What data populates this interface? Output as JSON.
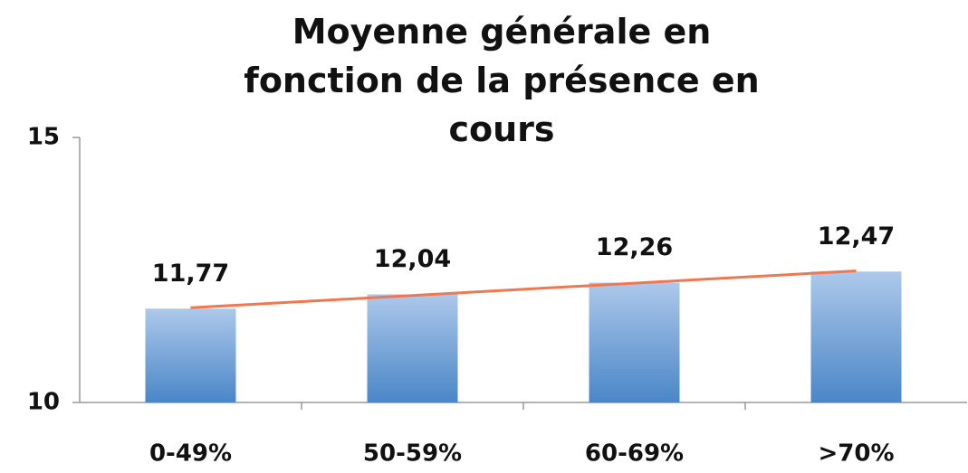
{
  "chart_data": {
    "type": "bar",
    "title": "Moyenne générale en fonction de la présence en cours",
    "categories": [
      "0-49%",
      "50-59%",
      "60-69%",
      ">70%"
    ],
    "values": [
      11.77,
      12.04,
      12.26,
      12.47
    ],
    "value_labels": [
      "11,77",
      "12,04",
      "12,26",
      "12,47"
    ],
    "color": "#4a86c8",
    "ylim": [
      10,
      15
    ],
    "yticks": [
      10,
      15
    ],
    "grid": false,
    "trendline": true,
    "trendline_color": "#f07850"
  }
}
